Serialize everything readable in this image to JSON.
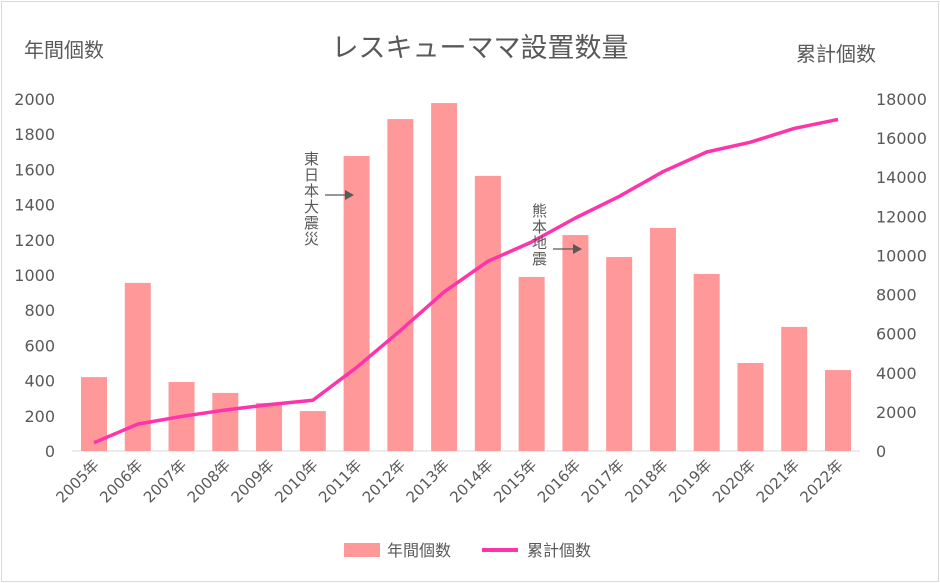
{
  "chart_data": {
    "type": "bar+line",
    "title": "レスキューママ設置数量",
    "ylabel_left": "年間個数",
    "ylabel_right": "累計個数",
    "categories": [
      "2005年",
      "2006年",
      "2007年",
      "2008年",
      "2009年",
      "2010年",
      "2011年",
      "2012年",
      "2013年",
      "2014年",
      "2015年",
      "2016年",
      "2017年",
      "2018年",
      "2019年",
      "2020年",
      "2021年",
      "2022年"
    ],
    "series": [
      {
        "name": "年間個数",
        "type": "bar",
        "axis": "left",
        "color": "#ff9999",
        "values": [
          420,
          955,
          392,
          330,
          273,
          227,
          1676,
          1886,
          1977,
          1563,
          989,
          1227,
          1102,
          1267,
          1006,
          500,
          705,
          460
        ]
      },
      {
        "name": "累計個数",
        "type": "line",
        "axis": "right",
        "color": "#ff33aa",
        "values": [
          420,
          1375,
          1767,
          2097,
          2370,
          2597,
          4273,
          6159,
          8136,
          9699,
          10688,
          11915,
          13017,
          14284,
          15290,
          15790,
          16495,
          16955
        ]
      }
    ],
    "ylim_left": [
      0,
      2000
    ],
    "yticks_left": [
      0,
      200,
      400,
      600,
      800,
      1000,
      1200,
      1400,
      1600,
      1800,
      2000
    ],
    "ylim_right": [
      0,
      18000
    ],
    "yticks_right": [
      0,
      2000,
      4000,
      6000,
      8000,
      10000,
      12000,
      14000,
      16000,
      18000
    ],
    "grid": false,
    "legend": "bottom",
    "annotations": [
      {
        "text": "東日本大震災",
        "category": "2011年"
      },
      {
        "text": "熊本地震",
        "category": "2016年"
      }
    ]
  }
}
